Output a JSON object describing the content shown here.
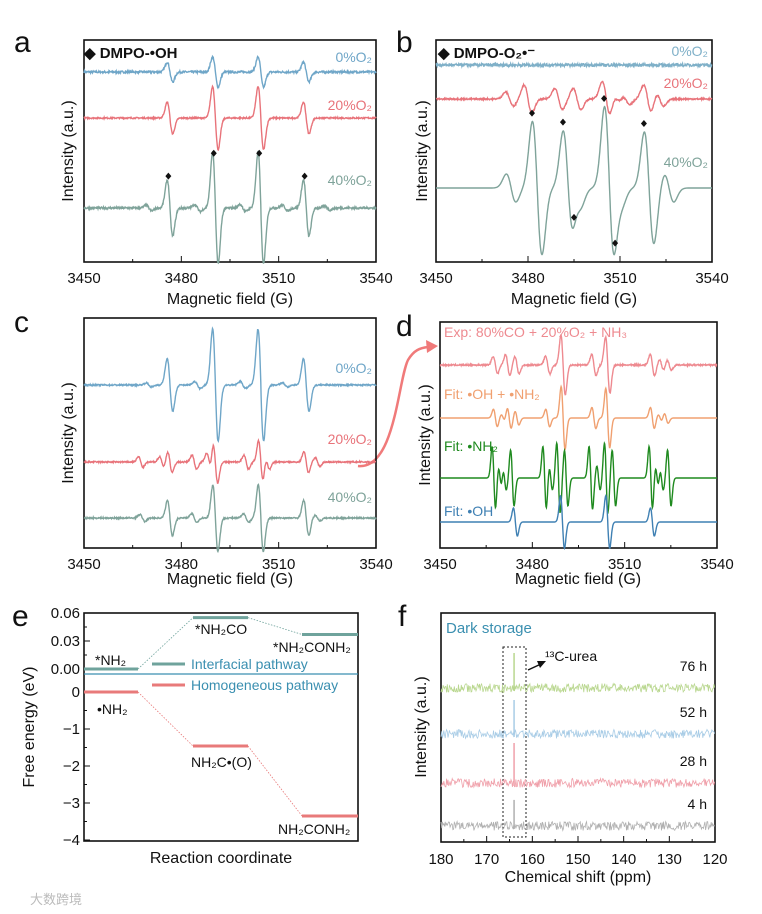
{
  "chart_data": [
    {
      "panel": "a",
      "type": "line",
      "title": "◆ DMPO-•OH",
      "xlabel": "Magnetic field (G)",
      "ylabel": "Intensity (a.u.)",
      "xlim": [
        3450,
        3540
      ],
      "xticks": [
        "3450",
        "3480",
        "3510",
        "3540"
      ],
      "marker_positions": [
        3476,
        3490,
        3504,
        3518
      ],
      "series": [
        {
          "name": "0%O₂",
          "color": "#6fa6c8",
          "width": 1.2,
          "noise": 0.03,
          "peaks": [
            [
              3476.5,
              0.28
            ],
            [
              3490.5,
              0.43
            ],
            [
              3504.5,
              0.43
            ],
            [
              3518.5,
              0.28
            ]
          ]
        },
        {
          "name": "20%O₂",
          "color": "#e8737a",
          "width": 1.2,
          "noise": 0.02,
          "peaks": [
            [
              3476.5,
              0.45
            ],
            [
              3490.5,
              0.9
            ],
            [
              3504.5,
              0.9
            ],
            [
              3518.5,
              0.45
            ]
          ]
        },
        {
          "name": "40%O₂",
          "color": "#7fa39a",
          "width": 1.2,
          "noise": 0.03,
          "peaks": [
            [
              3476.5,
              0.8
            ],
            [
              3490.5,
              1.6
            ],
            [
              3504.5,
              1.6
            ],
            [
              3518.5,
              0.8
            ],
            [
              3470,
              0.08
            ],
            [
              3485,
              0.1
            ],
            [
              3499,
              0.1
            ],
            [
              3512,
              0.08
            ],
            [
              3525,
              0.06
            ]
          ]
        }
      ]
    },
    {
      "panel": "b",
      "type": "line",
      "title": "◆ DMPO-O₂•⁻",
      "xlabel": "Magnetic field (G)",
      "ylabel": "Intensity (a.u.)",
      "xlim": [
        3450,
        3540
      ],
      "xticks": [
        "3450",
        "3480",
        "3510",
        "3540"
      ],
      "marker_positions": [
        3481.3,
        3491.4,
        3495,
        3504.8,
        3508.4,
        3517.8
      ],
      "series": [
        {
          "name": "0%O₂",
          "color": "#7fb0c8",
          "width": 1.5,
          "noise": 0.04,
          "peaks": []
        },
        {
          "name": "20%O₂",
          "color": "#e8737a",
          "width": 1.8,
          "noise": 0.02,
          "peaks": [
            [
              3474,
              0.2
            ],
            [
              3480,
              0.4
            ],
            [
              3490,
              0.3
            ],
            [
              3496,
              0.3
            ],
            [
              3505.5,
              0.5
            ],
            [
              3509,
              0.15
            ],
            [
              3512,
              0.15
            ],
            [
              3519,
              0.4
            ],
            [
              3523,
              0.2
            ]
          ]
        },
        {
          "name": "40%O₂",
          "color": "#7fa39a",
          "width": 2.2,
          "noise": 0.0,
          "peaks": [
            [
              3474.5,
              0.4
            ],
            [
              3483,
              1.9
            ],
            [
              3493,
              1.6
            ],
            [
              3496,
              0.45
            ],
            [
              3506.5,
              2.3
            ],
            [
              3509.5,
              0.4
            ],
            [
              3519.5,
              1.6
            ],
            [
              3526,
              0.4
            ]
          ]
        }
      ]
    },
    {
      "panel": "c",
      "type": "line",
      "xlabel": "Magnetic field (G)",
      "ylabel": "Intensity (a.u.)",
      "xlim": [
        3450,
        3540
      ],
      "xticks": [
        "3450",
        "3480",
        "3510",
        "3540"
      ],
      "series": [
        {
          "name": "0%O₂",
          "color": "#6fa6c8",
          "width": 1.2,
          "noise": 0.02,
          "peaks": [
            [
              3476.5,
              0.75
            ],
            [
              3490.5,
              1.6
            ],
            [
              3504.5,
              1.6
            ],
            [
              3518.5,
              0.75
            ],
            [
              3470,
              0.06
            ],
            [
              3485,
              0.1
            ],
            [
              3499,
              0.1
            ],
            [
              3512,
              0.06
            ]
          ]
        },
        {
          "name": "20%O₂",
          "color": "#e8737a",
          "width": 1.0,
          "noise": 0.02,
          "peaks": [
            [
              3467.5,
              0.15
            ],
            [
              3474,
              0.15
            ],
            [
              3476.5,
              0.3
            ],
            [
              3484,
              0.2
            ],
            [
              3488.5,
              0.25
            ],
            [
              3490.5,
              0.6
            ],
            [
              3500,
              0.2
            ],
            [
              3504.5,
              0.6
            ],
            [
              3506.5,
              0.2
            ],
            [
              3518.5,
              0.3
            ],
            [
              3522,
              0.12
            ]
          ]
        },
        {
          "name": "40%O₂",
          "color": "#7fa39a",
          "width": 1.1,
          "noise": 0.02,
          "peaks": [
            [
              3468,
              0.1
            ],
            [
              3476.5,
              0.5
            ],
            [
              3484,
              0.12
            ],
            [
              3490.5,
              0.95
            ],
            [
              3500,
              0.12
            ],
            [
              3504.5,
              0.95
            ],
            [
              3518.5,
              0.5
            ],
            [
              3522,
              0.08
            ]
          ]
        }
      ]
    },
    {
      "panel": "d",
      "type": "line",
      "xlabel": "Magnetic field (G)",
      "ylabel": "Intensity (a.u.)",
      "xlim": [
        3450,
        3540
      ],
      "xticks": [
        "3450",
        "3480",
        "3510",
        "3540"
      ],
      "series": [
        {
          "name": "Exp:  80%CO + 20%O₂ + NH₃",
          "color": "#ee8a90",
          "width": 1.0,
          "noise": 0.02,
          "peaks": [
            [
              3468,
              0.25
            ],
            [
              3472,
              0.3
            ],
            [
              3475,
              0.25
            ],
            [
              3485,
              0.25
            ],
            [
              3490,
              0.85
            ],
            [
              3500,
              0.3
            ],
            [
              3504.5,
              0.8
            ],
            [
              3519,
              0.3
            ],
            [
              3522,
              0.15
            ],
            [
              3524.5,
              0.15
            ]
          ]
        },
        {
          "name": "Fit: •OH + •NH₂",
          "color": "#f0a070",
          "width": 0.9,
          "noise": 0.0,
          "peaks": [
            [
              3468,
              0.25
            ],
            [
              3470.5,
              0.1
            ],
            [
              3472.5,
              0.3
            ],
            [
              3475,
              0.2
            ],
            [
              3485,
              0.25
            ],
            [
              3490,
              0.9
            ],
            [
              3500,
              0.3
            ],
            [
              3504.5,
              0.85
            ],
            [
              3519,
              0.3
            ],
            [
              3521.5,
              0.1
            ],
            [
              3523.5,
              0.15
            ]
          ]
        },
        {
          "name": "Fit: •NH₂",
          "color": "#1f8a1f",
          "width": 0.8,
          "noise": 0.0,
          "peaks": [
            [
              3467.5,
              0.9
            ],
            [
              3469.5,
              0.35
            ],
            [
              3471,
              0.35
            ],
            [
              3473.5,
              0.8
            ],
            [
              3484,
              0.9
            ],
            [
              3486,
              0.35
            ],
            [
              3488.5,
              1.0
            ],
            [
              3491,
              0.8
            ],
            [
              3499,
              0.9
            ],
            [
              3501.5,
              0.35
            ],
            [
              3504,
              1.0
            ],
            [
              3506.5,
              0.8
            ],
            [
              3518.5,
              0.9
            ],
            [
              3520.5,
              0.35
            ],
            [
              3522,
              0.35
            ],
            [
              3524.5,
              0.8
            ]
          ]
        },
        {
          "name": "Fit: •OH",
          "color": "#3f80b3",
          "width": 0.9,
          "noise": 0.0,
          "peaks": [
            [
              3474.5,
              0.4
            ],
            [
              3489.8,
              0.75
            ],
            [
              3504.5,
              0.75
            ],
            [
              3519,
              0.4
            ]
          ]
        }
      ]
    },
    {
      "panel": "e",
      "type": "line",
      "xlabel": "Reaction coordinate",
      "ylabel": "Free energy (eV)",
      "y_upper": {
        "lim": [
          0.0,
          0.06
        ],
        "ticks": [
          "0.06",
          "0.03",
          "0.00"
        ]
      },
      "y_lower": {
        "lim": [
          -4,
          0
        ],
        "ticks": [
          "0",
          "−1",
          "−2",
          "−3",
          "−4"
        ]
      },
      "legend": [
        "Interfacial pathway",
        "Homogeneous pathway"
      ],
      "series": [
        {
          "name": "Interfacial pathway",
          "color": "#6fa39c",
          "axis": "upper",
          "levels": [
            {
              "label": "*NH₂",
              "value": 0.0
            },
            {
              "label": "*NH₂CO",
              "value": 0.055
            },
            {
              "label": "*NH₂CONH₂",
              "value": 0.037
            }
          ]
        },
        {
          "name": "Homogeneous pathway",
          "color": "#e87a7a",
          "axis": "lower",
          "levels": [
            {
              "label": "•NH₂",
              "value": 0.0
            },
            {
              "label": "NH₂C•(O)",
              "value": -1.46
            },
            {
              "label": "NH₂CONH₂",
              "value": -3.35
            }
          ]
        }
      ]
    },
    {
      "panel": "f",
      "type": "line",
      "title": "Dark storage",
      "annotation": "¹³C-urea",
      "xlabel": "Chemical shift (ppm)",
      "ylabel": "Intensity (a.u.)",
      "xlim": [
        180,
        120
      ],
      "xticks": [
        "180",
        "170",
        "160",
        "150",
        "140",
        "130",
        "120"
      ],
      "peak_ppm": 164,
      "series": [
        {
          "name": "76 h",
          "color": "#b9d78f",
          "peak": 1.0
        },
        {
          "name": "52 h",
          "color": "#a8cce6",
          "peak": 1.0
        },
        {
          "name": "28 h",
          "color": "#f0a0aa",
          "peak": 1.0
        },
        {
          "name": "4 h",
          "color": "#b0b0b0",
          "peak": 0.9
        }
      ]
    }
  ],
  "labels": {
    "a": "a",
    "b": "b",
    "c": "c",
    "d": "d",
    "e": "e",
    "f": "f"
  },
  "watermark": "大数跨境"
}
